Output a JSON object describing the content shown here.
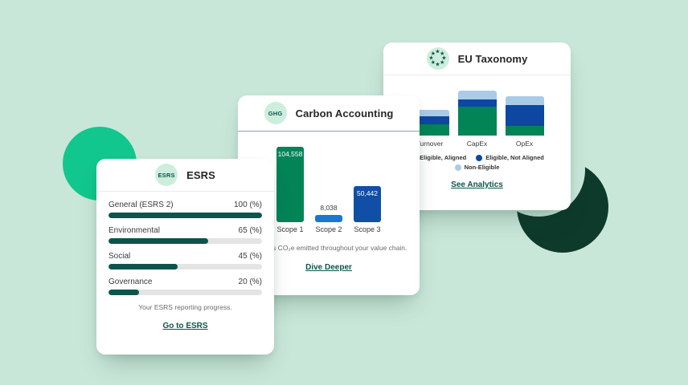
{
  "background": {
    "color": "#c9e7d9",
    "accent_circle_color": "#12c78d",
    "dark_crescent_color": "#0e3a2c"
  },
  "theme": {
    "link_color": "#0d5449",
    "badge_bg": "#cdeedd",
    "card_bg": "#ffffff"
  },
  "cards": {
    "esrs": {
      "badge_label": "ESRS",
      "title": "ESRS",
      "caption": "Your ESRS reporting progress.",
      "link_label": "Go to ESRS",
      "chart_data": {
        "type": "bar",
        "variant": "horizontal-progress",
        "categories": [
          "General (ESRS 2)",
          "Environmental",
          "Social",
          "Governance"
        ],
        "values": [
          100,
          65,
          45,
          20
        ],
        "value_suffix": " (%)",
        "max": 100,
        "bar_color": "#0d544d",
        "track_color": "#e4e4e4"
      }
    },
    "carbon": {
      "badge_label": "GHG",
      "title": "Carbon Accounting",
      "caption": "Includes CO₂e emitted throughout your value chain.",
      "link_label": "Dive Deeper",
      "chart_data": {
        "type": "bar",
        "categories": [
          "Scope 1",
          "Scope 2",
          "Scope 3"
        ],
        "values": [
          104558,
          8038,
          50442
        ],
        "value_labels": [
          "104,558",
          "8,038",
          "50,442"
        ],
        "colors": [
          "#028457",
          "#1b76d2",
          "#114fa6"
        ],
        "ylabel": "",
        "grid": false
      }
    },
    "taxonomy": {
      "icon": "eu-stars-icon",
      "title": "EU Taxonomy",
      "link_label": "See Analytics",
      "chart_data": {
        "type": "bar",
        "variant": "stacked",
        "categories": [
          "Turnover",
          "CapEx",
          "OpEx"
        ],
        "series": [
          {
            "name": "Eligible, Aligned",
            "color": "#028457",
            "values": [
              14,
              36,
              12
            ]
          },
          {
            "name": "Eligible, Not Aligned",
            "color": "#0d47a1",
            "values": [
              10,
              9,
              26
            ]
          },
          {
            "name": "Non-Eligible",
            "color": "#a9cbe8",
            "values": [
              8,
              11,
              11
            ]
          }
        ],
        "units": "relative-height-px (no numeric labels shown)",
        "legend_position": "below",
        "grid": false
      }
    }
  }
}
